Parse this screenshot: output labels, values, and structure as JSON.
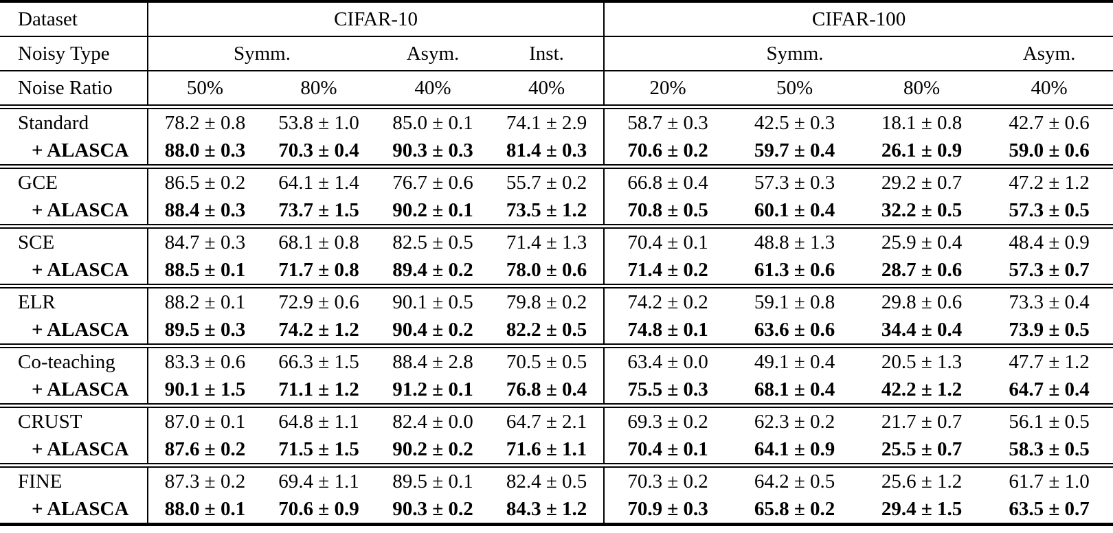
{
  "table": {
    "alasca_label": "+ ALASCA",
    "header": {
      "dataset_label": "Dataset",
      "noisy_type_label": "Noisy Type",
      "noise_ratio_label": "Noise Ratio",
      "groups": [
        {
          "label": "CIFAR-10",
          "noise_types": [
            {
              "label": "Symm.",
              "span": 2
            },
            {
              "label": "Asym.",
              "span": 1
            },
            {
              "label": "Inst.",
              "span": 1
            }
          ],
          "ratios": [
            "50%",
            "80%",
            "40%",
            "40%"
          ]
        },
        {
          "label": "CIFAR-100",
          "noise_types": [
            {
              "label": "Symm.",
              "span": 3
            },
            {
              "label": "Asym.",
              "span": 1
            }
          ],
          "ratios": [
            "20%",
            "50%",
            "80%",
            "40%"
          ]
        }
      ]
    },
    "blocks": [
      {
        "method": "Standard",
        "base": [
          "78.2 ± 0.8",
          "53.8 ± 1.0",
          "85.0 ± 0.1",
          "74.1 ± 2.9",
          "58.7 ± 0.3",
          "42.5 ± 0.3",
          "18.1 ± 0.8",
          "42.7 ± 0.6"
        ],
        "alasca": [
          "88.0 ± 0.3",
          "70.3 ± 0.4",
          "90.3 ± 0.3",
          "81.4 ± 0.3",
          "70.6 ± 0.2",
          "59.7 ± 0.4",
          "26.1 ± 0.9",
          "59.0 ± 0.6"
        ]
      },
      {
        "method": "GCE",
        "base": [
          "86.5 ± 0.2",
          "64.1 ± 1.4",
          "76.7 ± 0.6",
          "55.7 ± 0.2",
          "66.8 ± 0.4",
          "57.3 ± 0.3",
          "29.2 ± 0.7",
          "47.2 ± 1.2"
        ],
        "alasca": [
          "88.4 ± 0.3",
          "73.7 ± 1.5",
          "90.2 ± 0.1",
          "73.5 ± 1.2",
          "70.8 ± 0.5",
          "60.1 ± 0.4",
          "32.2 ± 0.5",
          "57.3 ± 0.5"
        ]
      },
      {
        "method": "SCE",
        "base": [
          "84.7 ± 0.3",
          "68.1 ± 0.8",
          "82.5 ± 0.5",
          "71.4 ± 1.3",
          "70.4 ± 0.1",
          "48.8 ± 1.3",
          "25.9 ± 0.4",
          "48.4 ± 0.9"
        ],
        "alasca": [
          "88.5 ± 0.1",
          "71.7 ± 0.8",
          "89.4 ± 0.2",
          "78.0 ± 0.6",
          "71.4 ± 0.2",
          "61.3 ± 0.6",
          "28.7 ± 0.6",
          "57.3 ± 0.7"
        ]
      },
      {
        "method": "ELR",
        "base": [
          "88.2 ± 0.1",
          "72.9 ± 0.6",
          "90.1 ± 0.5",
          "79.8 ± 0.2",
          "74.2 ± 0.2",
          "59.1 ± 0.8",
          "29.8 ± 0.6",
          "73.3 ± 0.4"
        ],
        "alasca": [
          "89.5 ± 0.3",
          "74.2 ± 1.2",
          "90.4 ± 0.2",
          "82.2 ± 0.5",
          "74.8 ± 0.1",
          "63.6 ± 0.6",
          "34.4 ± 0.4",
          "73.9 ± 0.5"
        ]
      },
      {
        "method": "Co-teaching",
        "base": [
          "83.3 ± 0.6",
          "66.3 ± 1.5",
          "88.4 ± 2.8",
          "70.5 ± 0.5",
          "63.4 ± 0.0",
          "49.1 ± 0.4",
          "20.5 ± 1.3",
          "47.7 ± 1.2"
        ],
        "alasca": [
          "90.1 ± 1.5",
          "71.1 ± 1.2",
          "91.2 ± 0.1",
          "76.8 ± 0.4",
          "75.5 ± 0.3",
          "68.1 ± 0.4",
          "42.2 ± 1.2",
          "64.7 ± 0.4"
        ]
      },
      {
        "method": "CRUST",
        "base": [
          "87.0 ± 0.1",
          "64.8 ± 1.1",
          "82.4 ± 0.0",
          "64.7 ± 2.1",
          "69.3 ± 0.2",
          "62.3 ± 0.2",
          "21.7 ± 0.7",
          "56.1 ± 0.5"
        ],
        "alasca": [
          "87.6 ± 0.2",
          "71.5 ± 1.5",
          "90.2 ± 0.2",
          "71.6 ± 1.1",
          "70.4 ± 0.1",
          "64.1 ± 0.9",
          "25.5 ± 0.7",
          "58.3 ± 0.5"
        ]
      },
      {
        "method": "FINE",
        "base": [
          "87.3 ± 0.2",
          "69.4 ± 1.1",
          "89.5 ± 0.1",
          "82.4 ± 0.5",
          "70.3 ± 0.2",
          "64.2 ± 0.5",
          "25.6 ± 1.2",
          "61.7 ± 1.0"
        ],
        "alasca": [
          "88.0 ± 0.1",
          "70.6 ± 0.9",
          "90.3 ± 0.2",
          "84.3 ± 1.2",
          "70.9 ± 0.3",
          "65.8 ± 0.2",
          "29.4 ± 1.5",
          "63.5 ± 0.7"
        ]
      }
    ]
  }
}
